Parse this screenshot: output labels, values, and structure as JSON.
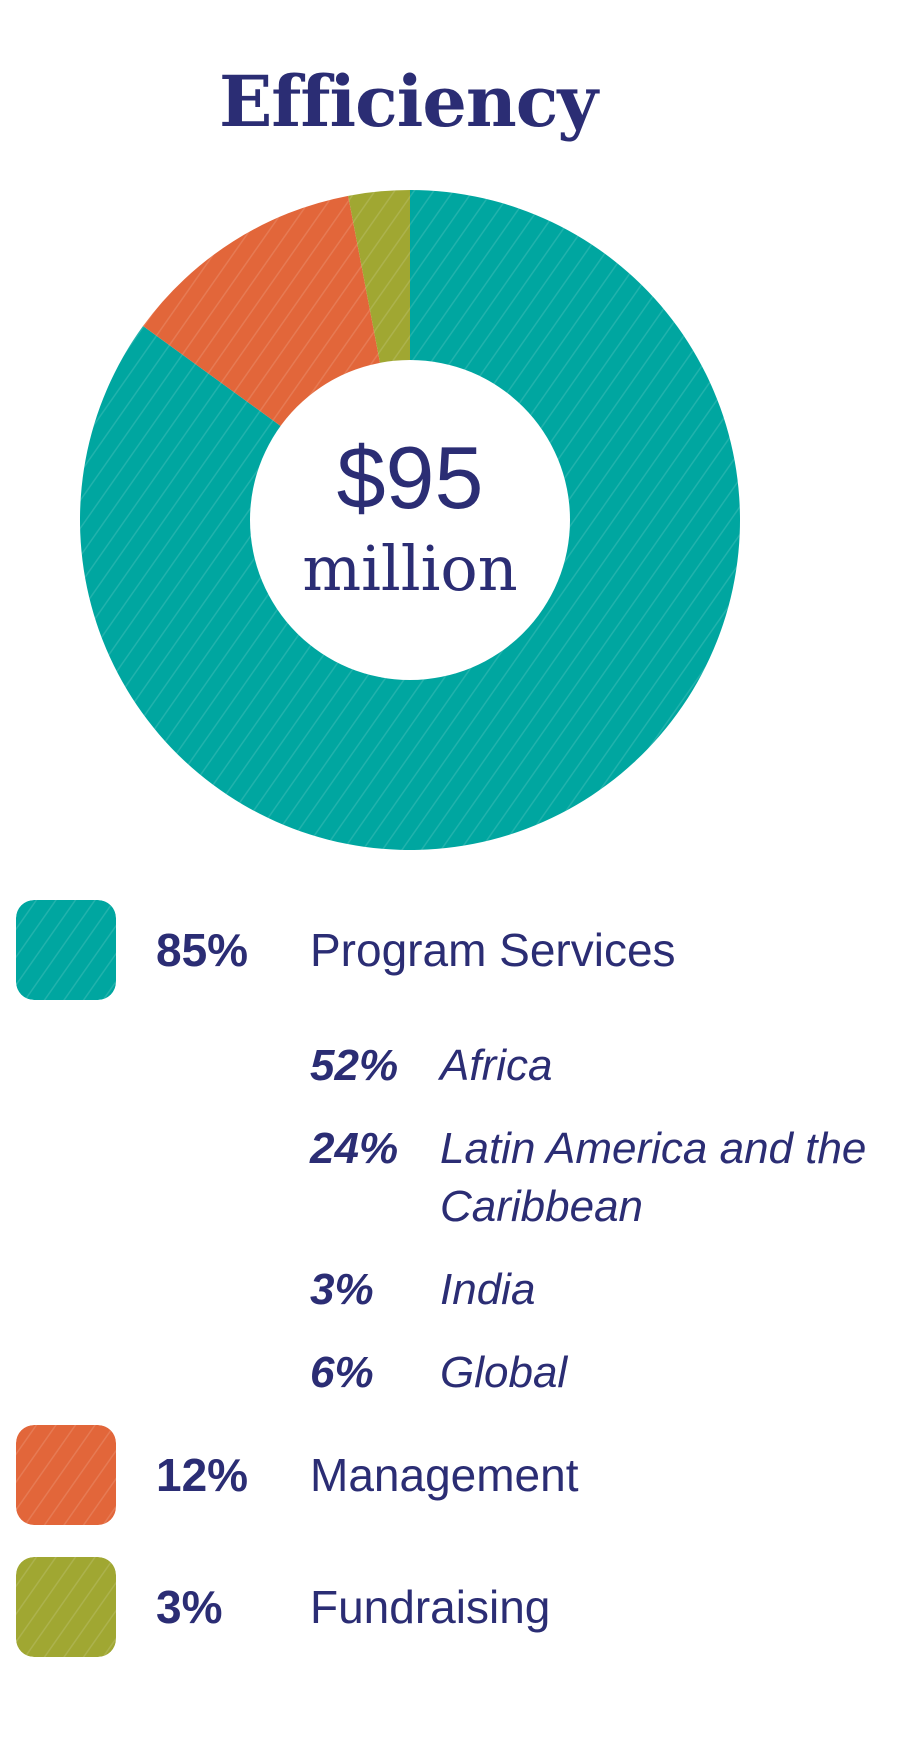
{
  "title": "Efficiency",
  "center": {
    "amount": "$95",
    "unit": "million"
  },
  "colors": {
    "text": "#2b2d74",
    "program": "#00a6a0",
    "management": "#e2663a",
    "fundraising": "#a0a732"
  },
  "chart_data": {
    "type": "pie",
    "title": "Efficiency",
    "categories": [
      "Program Services",
      "Management",
      "Fundraising"
    ],
    "values": [
      85,
      12,
      3
    ],
    "center_text": [
      "$95",
      "million"
    ]
  },
  "legend": [
    {
      "pct": "85%",
      "label": "Program Services",
      "icon": "teal-swatch"
    },
    {
      "pct": "12%",
      "label": "Management",
      "icon": "orange-swatch"
    },
    {
      "pct": "3%",
      "label": "Fundraising",
      "icon": "olive-swatch"
    }
  ],
  "program_breakdown": [
    {
      "pct": "52%",
      "label": "Africa"
    },
    {
      "pct": "24%",
      "label": "Latin America and the Caribbean"
    },
    {
      "pct": "3%",
      "label": "India"
    },
    {
      "pct": "6%",
      "label": "Global"
    }
  ]
}
